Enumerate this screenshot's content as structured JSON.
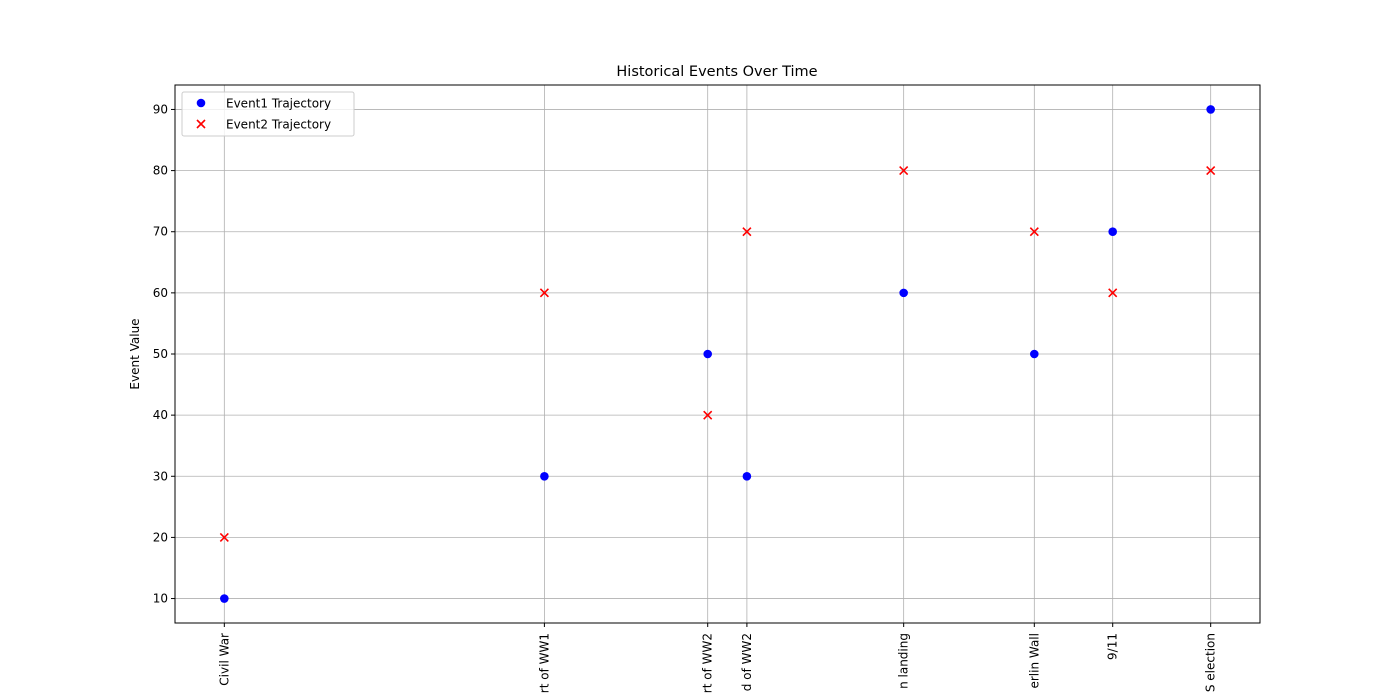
{
  "chart_data": {
    "type": "scatter",
    "title": "Historical Events Over Time",
    "y_label": "Event Value",
    "x": [
      1865,
      1914,
      1939,
      1945,
      1969,
      1989,
      2001,
      2016
    ],
    "series": [
      {
        "name": "Event1 Trajectory",
        "color": "#0000ff",
        "marker": "circle",
        "values": [
          10,
          30,
          50,
          30,
          60,
          50,
          70,
          90
        ]
      },
      {
        "name": "Event2 Trajectory",
        "color": "#ff0000",
        "marker": "x",
        "values": [
          20,
          60,
          40,
          70,
          80,
          70,
          60,
          80
        ]
      }
    ],
    "xlim": [
      1857.45,
      2023.55
    ],
    "xticks": [
      {
        "value": 1865,
        "label": "Civil War"
      },
      {
        "value": 1914,
        "label": "rt of WW1"
      },
      {
        "value": 1939,
        "label": "rt of WW2"
      },
      {
        "value": 1945,
        "label": "d of WW2"
      },
      {
        "value": 1969,
        "label": "n landing"
      },
      {
        "value": 1989,
        "label": "erlin Wall"
      },
      {
        "value": 2001,
        "label": "9/11"
      },
      {
        "value": 2016,
        "label": "S election"
      }
    ],
    "ylim": [
      6,
      94
    ],
    "yticks": [
      10,
      20,
      30,
      40,
      50,
      60,
      70,
      80,
      90
    ],
    "grid": true,
    "legend": "upper left"
  }
}
